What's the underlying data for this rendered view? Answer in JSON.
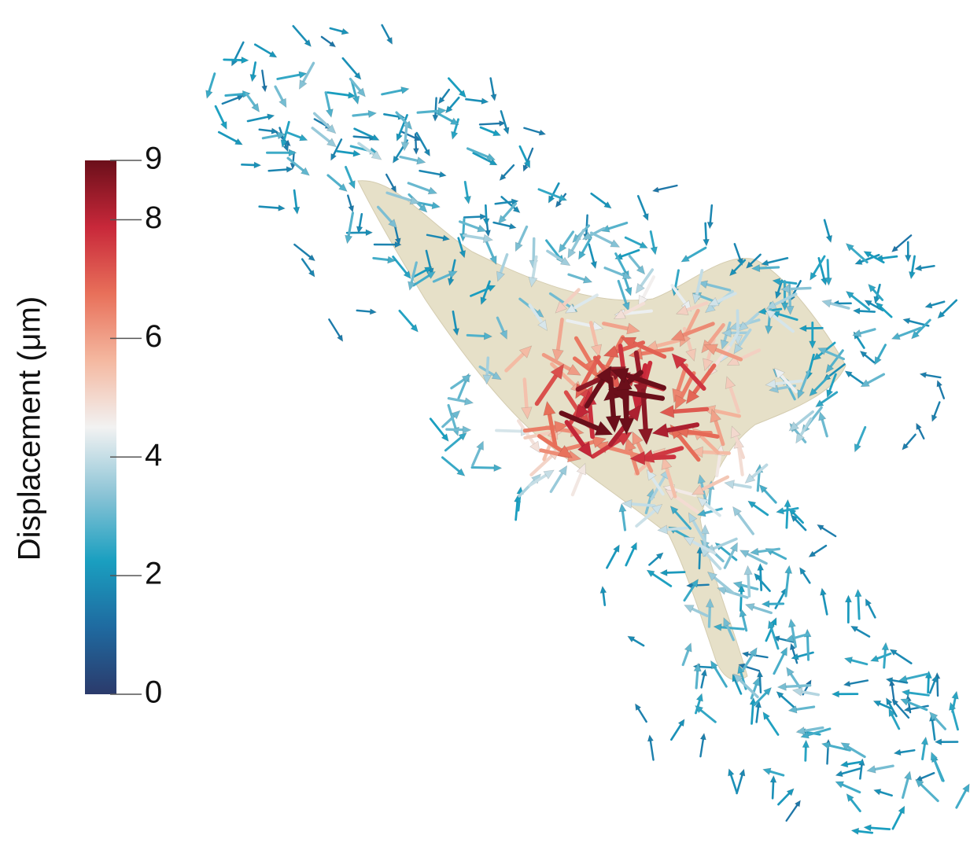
{
  "colorbar": {
    "label": "Displacement (μm)",
    "range": [
      0,
      9
    ],
    "ticks": [
      0,
      2,
      4,
      6,
      8,
      9
    ],
    "colors": [
      "#2b3a6b",
      "#1f6aa0",
      "#1a9fc0",
      "#8cc4d6",
      "#f2f2f2",
      "#f4b8a0",
      "#e8705a",
      "#c8283a",
      "#6b0f1a"
    ]
  }
}
